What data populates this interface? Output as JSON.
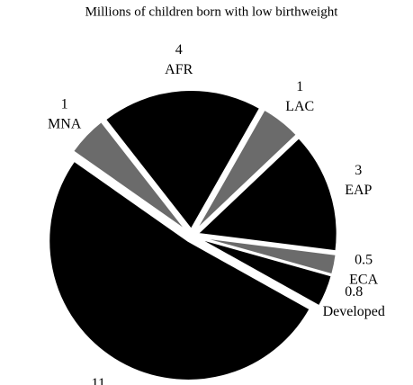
{
  "chart_data": {
    "type": "pie",
    "title": "Millions of children born with low birthweight",
    "categories": [
      "AFR",
      "LAC",
      "EAP",
      "ECA",
      "Developed",
      null,
      "MNA"
    ],
    "values": [
      4,
      1,
      3,
      0.5,
      0.8,
      11,
      1
    ],
    "colors": [
      "#000000",
      "#6b6b6b",
      "#000000",
      "#6b6b6b",
      "#000000",
      "#000000",
      "#6b6b6b"
    ]
  }
}
